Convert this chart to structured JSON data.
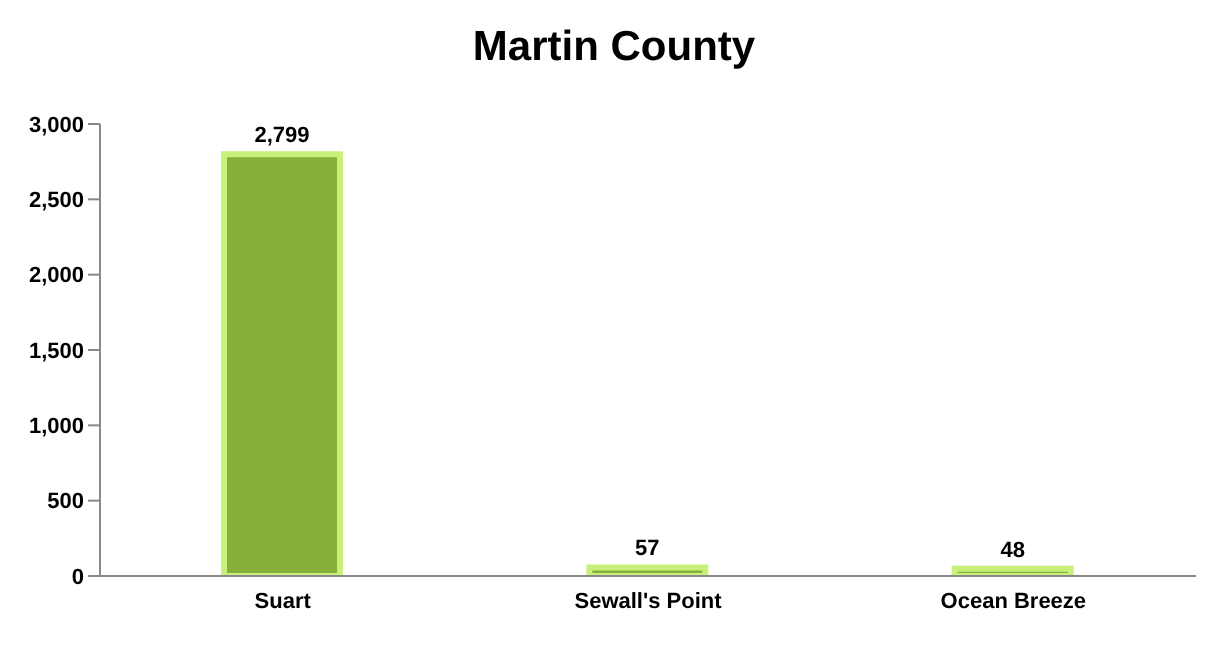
{
  "chart_data": {
    "type": "bar",
    "title": "Martin County",
    "categories": [
      "Suart",
      "Sewall's Point",
      "Ocean Breeze"
    ],
    "values": [
      2799,
      57,
      48
    ],
    "color": "#86b03c",
    "ylim": [
      0,
      3000
    ],
    "yticks": [
      0,
      500,
      {
        "value": 1000,
        "label": "1,000"
      },
      {
        "value": 1500,
        "label": "1,500"
      },
      {
        "value": 2000,
        "label": "2,000"
      },
      {
        "value": 2500,
        "label": "2,500"
      },
      {
        "value": 3000,
        "label": "3,000"
      }
    ],
    "value_labels": [
      "2,799",
      "57",
      "48"
    ],
    "grid": false,
    "legend": false
  }
}
